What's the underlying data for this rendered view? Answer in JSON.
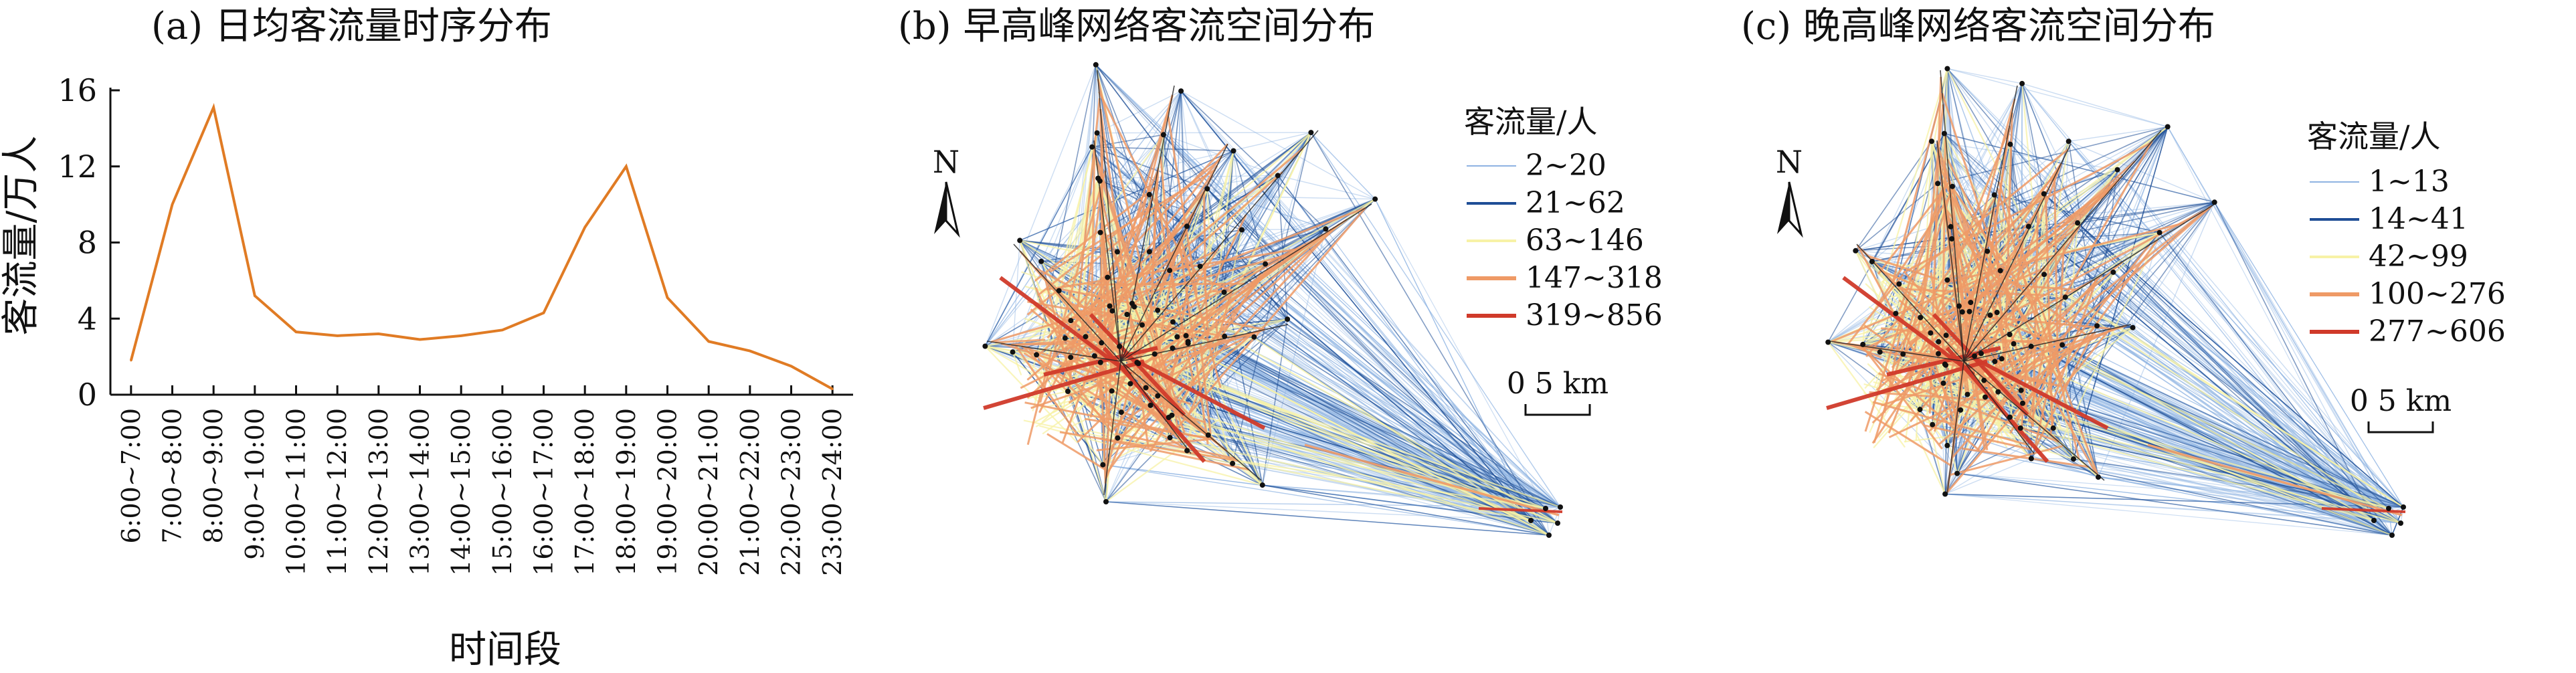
{
  "chart_data": [
    {
      "type": "line",
      "title": "(a) 日均客流量时序分布",
      "xlabel": "时间段",
      "ylabel": "客流量/万人",
      "ylim": [
        0,
        16
      ],
      "yticks": [
        "0",
        "4",
        "8",
        "12",
        "16"
      ],
      "categories": [
        "6:00~7:00",
        "7:00~8:00",
        "8:00~9:00",
        "9:00~10:00",
        "10:00~11:00",
        "11:00~12:00",
        "12:00~13:00",
        "13:00~14:00",
        "14:00~15:00",
        "15:00~16:00",
        "16:00~17:00",
        "17:00~18:00",
        "18:00~19:00",
        "19:00~20:00",
        "20:00~21:00",
        "21:00~22:00",
        "22:00~23:00",
        "23:00~24:00"
      ],
      "values": [
        1.8,
        10.0,
        15.1,
        5.2,
        3.3,
        3.1,
        3.2,
        2.9,
        3.1,
        3.4,
        4.3,
        8.8,
        12.0,
        5.1,
        2.8,
        2.3,
        1.5,
        0.3
      ],
      "line_color": "#e07b24",
      "grid": false
    },
    {
      "type": "map",
      "title": "(b) 早高峰网络客流空间分布",
      "north_label": "N",
      "scale_label": "0    5 km",
      "legend_title": "客流量/人",
      "legend": [
        {
          "label": "2~20",
          "color": "#8fb3e2"
        },
        {
          "label": "21~62",
          "color": "#1f4e96"
        },
        {
          "label": "63~146",
          "color": "#f7f2a6"
        },
        {
          "label": "147~318",
          "color": "#ef9a66"
        },
        {
          "label": "319~856",
          "color": "#d03a2a"
        }
      ]
    },
    {
      "type": "map",
      "title": "(c) 晚高峰网络客流空间分布",
      "north_label": "N",
      "scale_label": "0    5 km",
      "legend_title": "客流量/人",
      "legend": [
        {
          "label": "1~13",
          "color": "#8fb3e2"
        },
        {
          "label": "14~41",
          "color": "#1f4e96"
        },
        {
          "label": "42~99",
          "color": "#f7f2a6"
        },
        {
          "label": "100~276",
          "color": "#ef9a66"
        },
        {
          "label": "277~606",
          "color": "#d03a2a"
        }
      ]
    }
  ]
}
